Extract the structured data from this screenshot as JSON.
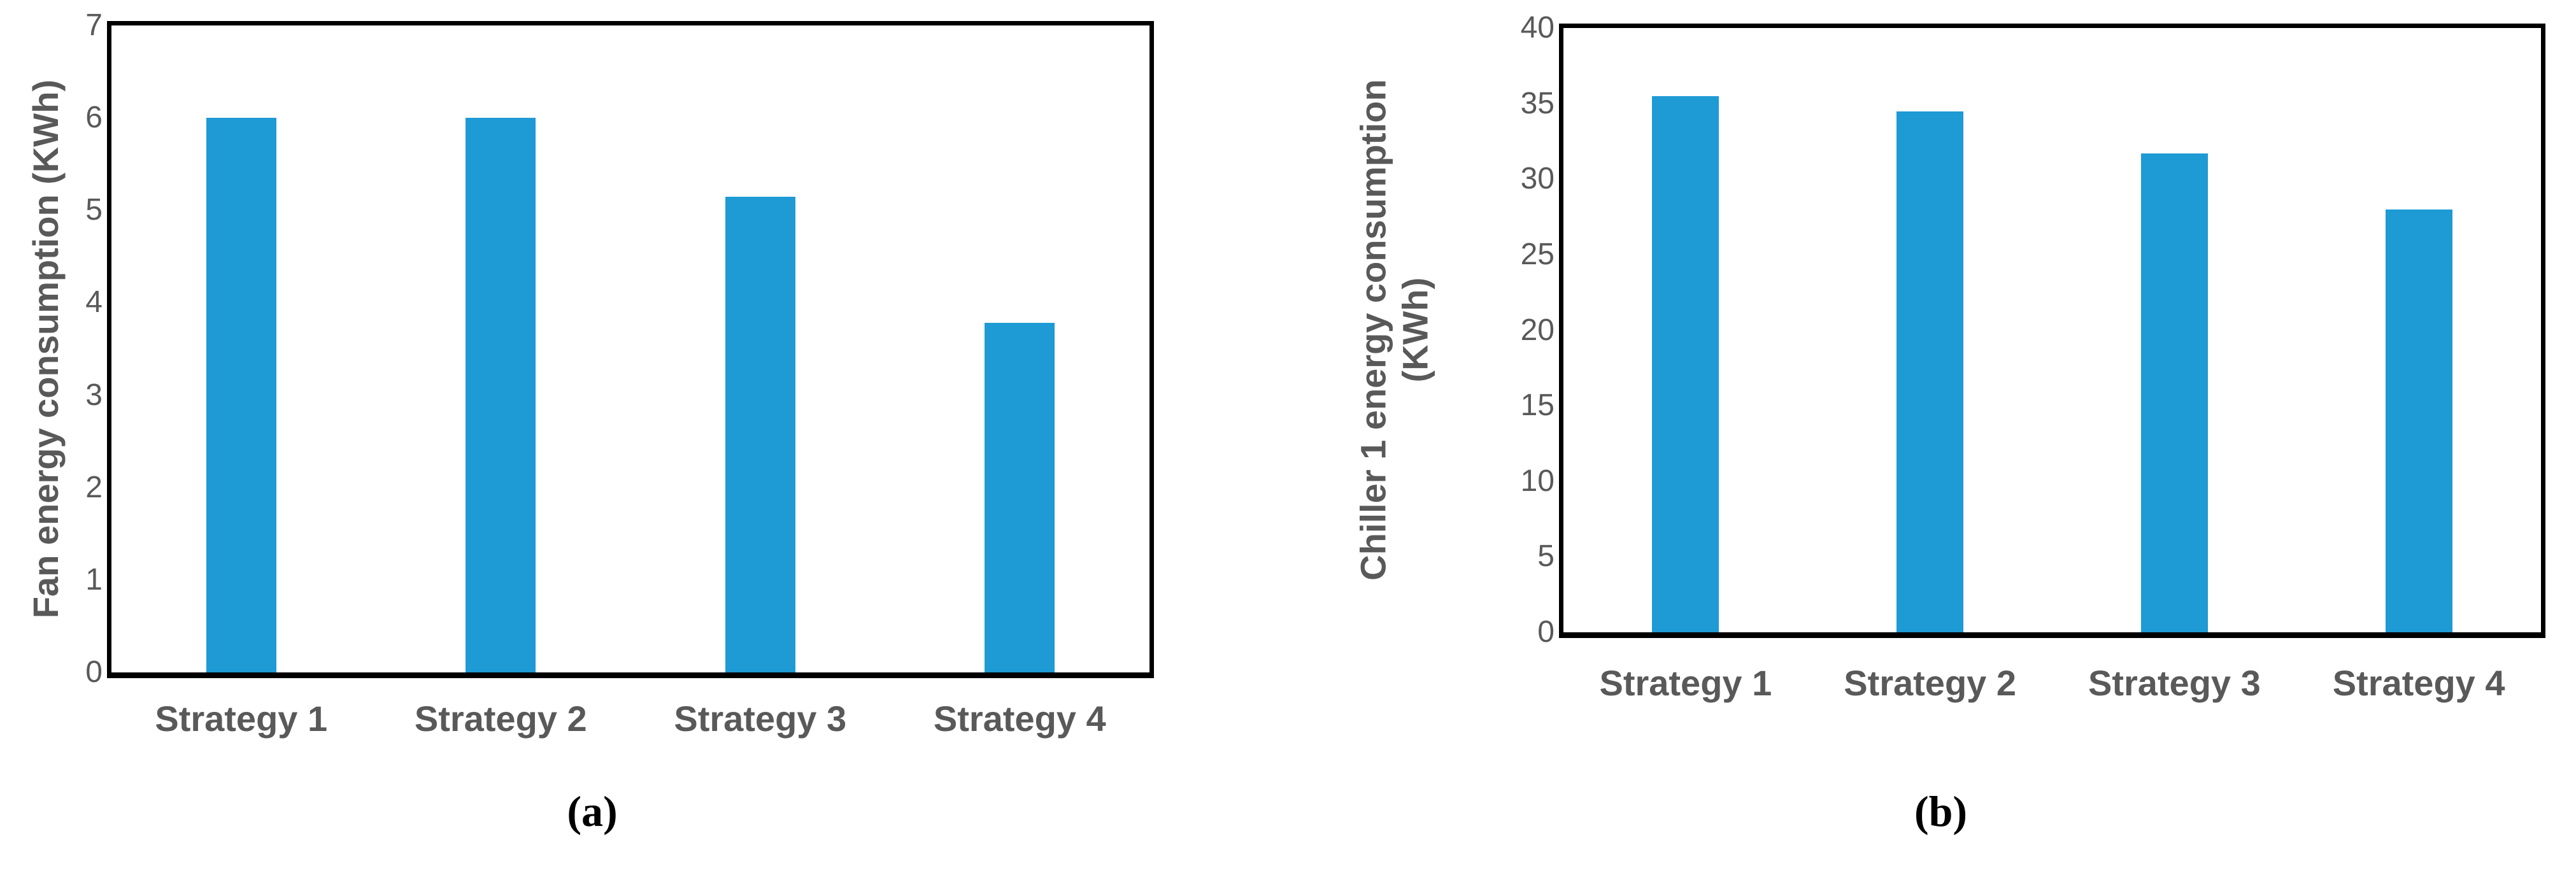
{
  "colors": {
    "bar": "#1E9AD5",
    "axis_text": "#595959",
    "frame": "#000000",
    "caption_text": "#000000",
    "background": "#FFFFFF"
  },
  "chart_data": [
    {
      "type": "bar",
      "panel_label": "(a)",
      "title": "",
      "xlabel": "",
      "ylabel": "Fan energy consumption (KWh)",
      "ylabel_lines": [
        "Fan energy consumption (KWh)"
      ],
      "categories": [
        "Strategy 1",
        "Strategy 2",
        "Strategy 3",
        "Strategy 4"
      ],
      "values": [
        6.0,
        6.0,
        5.15,
        3.78
      ],
      "ylim": [
        0,
        7
      ],
      "yticks": [
        0,
        1,
        2,
        3,
        4,
        5,
        6,
        7
      ],
      "grid": false,
      "legend": null,
      "bar_color": "#1E9AD5"
    },
    {
      "type": "bar",
      "panel_label": "(b)",
      "title": "",
      "xlabel": "",
      "ylabel": "Chiller 1 energy consumption (KWh)",
      "ylabel_lines": [
        "Chiller 1 energy consumption",
        "(KWh)"
      ],
      "categories": [
        "Strategy 1",
        "Strategy 2",
        "Strategy 3",
        "Strategy 4"
      ],
      "values": [
        35.5,
        34.5,
        31.7,
        28.0
      ],
      "ylim": [
        0,
        40
      ],
      "yticks": [
        0,
        5,
        10,
        15,
        20,
        25,
        30,
        35,
        40
      ],
      "grid": false,
      "legend": null,
      "bar_color": "#1E9AD5"
    }
  ]
}
